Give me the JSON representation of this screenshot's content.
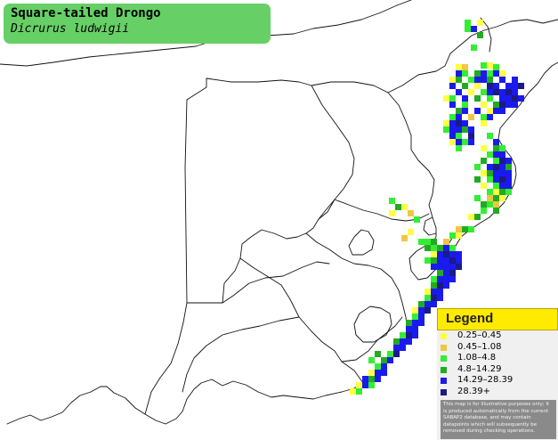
{
  "title": {
    "common_name": "Square-tailed Drongo",
    "scientific_name": "Dicrurus ludwigii"
  },
  "legend": {
    "title": "Legend",
    "items": [
      {
        "label": "0.25–0.45",
        "color": "#ffff44"
      },
      {
        "label": "0.45–1.08",
        "color": "#f2c544"
      },
      {
        "label": "1.08–4.8",
        "color": "#33ee33"
      },
      {
        "label": "4.8–14.29",
        "color": "#22aa22"
      },
      {
        "label": "14.29–28.39",
        "color": "#1a1aee"
      },
      {
        "label": "28.39+",
        "color": "#1a1a88"
      }
    ],
    "disclaimer": "This map is for illustrative purposes only; it is produced automatically from the current SABAP2 database, and may contain datapoints which will subsequently be removed during checking operations."
  }
}
